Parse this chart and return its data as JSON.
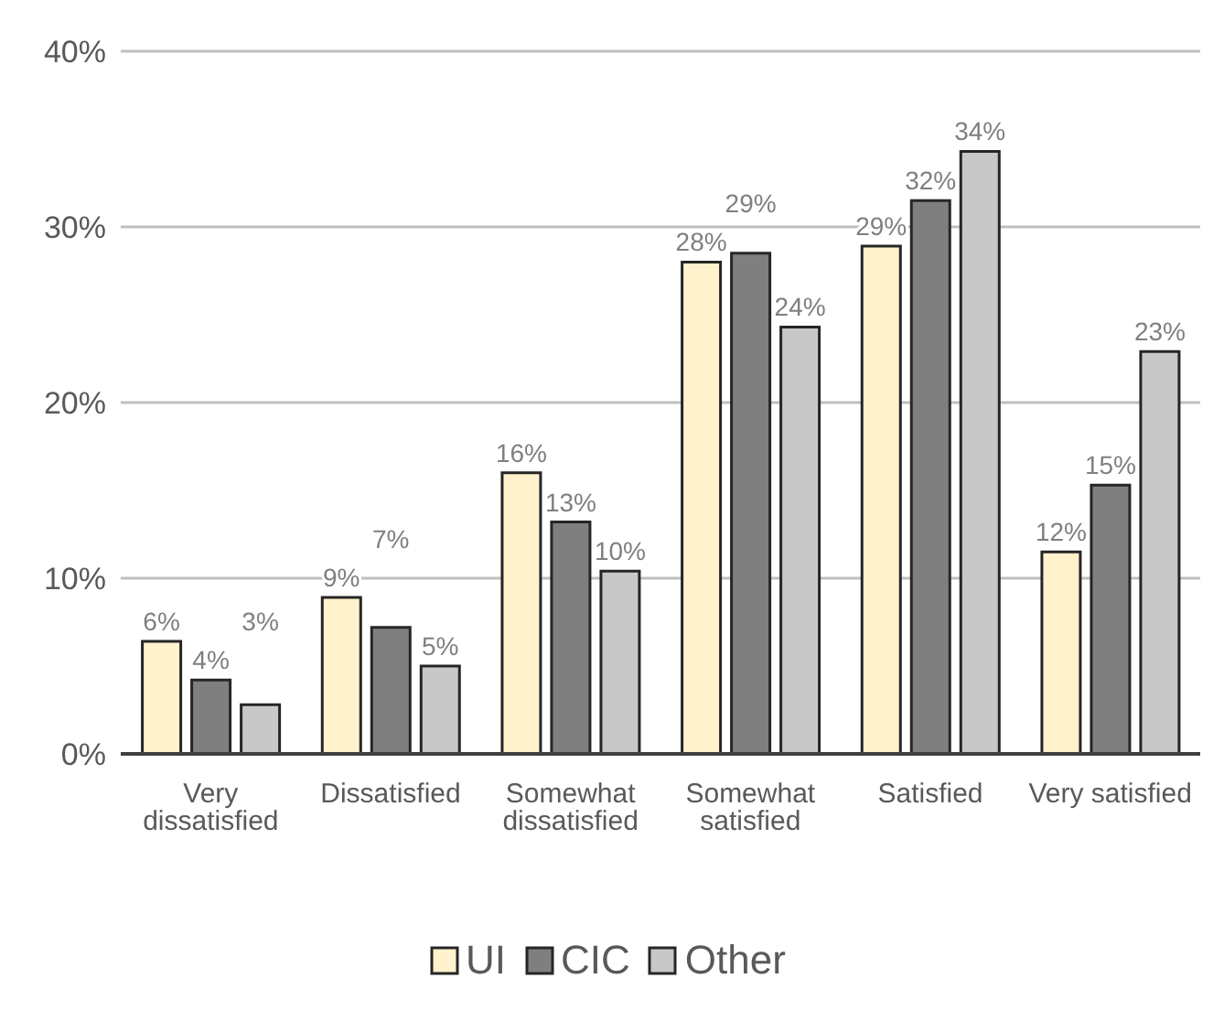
{
  "chart_data": {
    "type": "bar",
    "categories": [
      "Very dissatisfied",
      "Dissatisfied",
      "Somewhat dissatisfied",
      "Somewhat satisfied",
      "Satisfied",
      "Very satisfied"
    ],
    "series": [
      {
        "name": "UI",
        "color": "#fff2cc",
        "values": [
          6.4,
          8.9,
          16.0,
          28.0,
          28.9,
          11.5
        ],
        "value_labels": [
          "6%",
          "9%",
          "16%",
          "28%",
          "29%",
          "12%"
        ]
      },
      {
        "name": "CIC",
        "color": "#7f7f7f",
        "values": [
          4.2,
          7.2,
          13.2,
          28.5,
          31.5,
          15.3
        ],
        "value_labels": [
          "4%",
          "7%",
          "13%",
          "29%",
          "32%",
          "15%"
        ]
      },
      {
        "name": "Other",
        "color": "#c8c8c8",
        "values": [
          2.8,
          5.0,
          10.4,
          24.3,
          34.3,
          22.9
        ],
        "value_labels": [
          "3%",
          "5%",
          "10%",
          "24%",
          "34%",
          "23%"
        ]
      }
    ],
    "ylim": [
      0,
      40
    ],
    "yticks": [
      {
        "value": 0,
        "label": "0%"
      },
      {
        "value": 10,
        "label": "10%"
      },
      {
        "value": 20,
        "label": "20%"
      },
      {
        "value": 30,
        "label": "30%"
      },
      {
        "value": 40,
        "label": "40%"
      }
    ],
    "grid": "y",
    "legend": "bottom"
  }
}
